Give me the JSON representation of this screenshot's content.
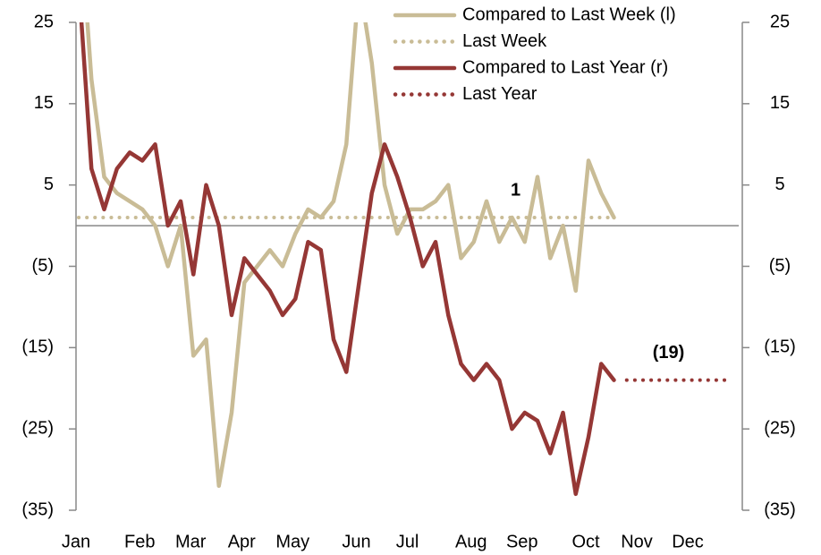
{
  "chart_data": {
    "type": "line",
    "categories": [
      "Jan",
      null,
      null,
      null,
      null,
      "Feb",
      null,
      null,
      null,
      "Mar",
      null,
      null,
      null,
      "Apr",
      null,
      null,
      null,
      "May",
      null,
      null,
      null,
      null,
      "Jun",
      null,
      null,
      null,
      "Jul",
      null,
      null,
      null,
      null,
      "Aug",
      null,
      null,
      null,
      "Sep",
      null,
      null,
      null,
      null,
      "Oct",
      null,
      null,
      null,
      "Nov",
      null,
      null,
      null,
      "Dec",
      null,
      null,
      null
    ],
    "series": [
      {
        "name": "Compared to Last Week (l)",
        "color": "#c9bc96",
        "style": "solid",
        "axis": "y",
        "values": [
          40,
          18,
          6,
          4,
          3,
          2,
          0,
          -5,
          0,
          -16,
          -14,
          -32,
          -23,
          -7,
          -5,
          -3,
          -5,
          -1,
          2,
          1,
          3,
          10,
          30,
          20,
          5,
          -1,
          2,
          2,
          3,
          5,
          -4,
          -2,
          3,
          -2,
          1,
          -2,
          6,
          -4,
          0,
          -8,
          8,
          4,
          1,
          null,
          null,
          null,
          null,
          null,
          null,
          null,
          null,
          null
        ]
      },
      {
        "name": "Last Week",
        "color": "#c9bc96",
        "style": "dotted",
        "axis": "y",
        "values": [
          1,
          1,
          1,
          1,
          1,
          1,
          1,
          1,
          1,
          1,
          1,
          1,
          1,
          1,
          1,
          1,
          1,
          1,
          1,
          1,
          1,
          1,
          1,
          1,
          1,
          1,
          1,
          1,
          1,
          1,
          1,
          1,
          1,
          1,
          1,
          1,
          1,
          1,
          1,
          1,
          1,
          1,
          1,
          null,
          null,
          null,
          null,
          null,
          null,
          null,
          null,
          null
        ]
      },
      {
        "name": "Compared to Last Year (r)",
        "color": "#953735",
        "style": "solid",
        "axis": "y2",
        "values": [
          30,
          7,
          2,
          7,
          9,
          8,
          10,
          0,
          3,
          -6,
          5,
          0,
          -11,
          -4,
          -6,
          -8,
          -11,
          -9,
          -2,
          -3,
          -14,
          -18,
          -7,
          4,
          10,
          6,
          1,
          -5,
          -2,
          -11,
          -17,
          -19,
          -17,
          -19,
          -25,
          -23,
          -24,
          -28,
          -23,
          -33,
          -26,
          -17,
          -19,
          null,
          null,
          null,
          null,
          null,
          null,
          null,
          null,
          null
        ]
      },
      {
        "name": "Last Year",
        "color": "#953735",
        "style": "dotted",
        "axis": "y2",
        "values": [
          null,
          null,
          null,
          null,
          null,
          null,
          null,
          null,
          null,
          null,
          null,
          null,
          null,
          null,
          null,
          null,
          null,
          null,
          null,
          null,
          null,
          null,
          null,
          null,
          null,
          null,
          null,
          null,
          null,
          null,
          null,
          null,
          null,
          null,
          null,
          null,
          null,
          null,
          null,
          null,
          null,
          null,
          null,
          -19,
          -19,
          -19,
          -19,
          -19,
          -19,
          -19,
          -19,
          -19
        ]
      }
    ],
    "annotations": [
      {
        "text": "1",
        "series": 1,
        "index": 34,
        "color": "#c9bc96"
      },
      {
        "text": "(19)",
        "series": 3,
        "index": 46,
        "color": "#c00000"
      }
    ],
    "ylim": [
      -35,
      25
    ],
    "yticks": [
      25,
      15,
      5,
      {
        "value": -5,
        "label": "(5)"
      },
      {
        "value": -15,
        "label": "(15)"
      },
      {
        "value": -25,
        "label": "(25)"
      },
      {
        "value": -35,
        "label": "(35)"
      }
    ],
    "y2lim": [
      -35,
      25
    ],
    "y2ticks": [
      25,
      15,
      5,
      {
        "value": -5,
        "label": "(5)"
      },
      {
        "value": -15,
        "label": "(15)"
      },
      {
        "value": -25,
        "label": "(25)"
      },
      {
        "value": -35,
        "label": "(35)"
      }
    ],
    "legend": "top-right"
  }
}
